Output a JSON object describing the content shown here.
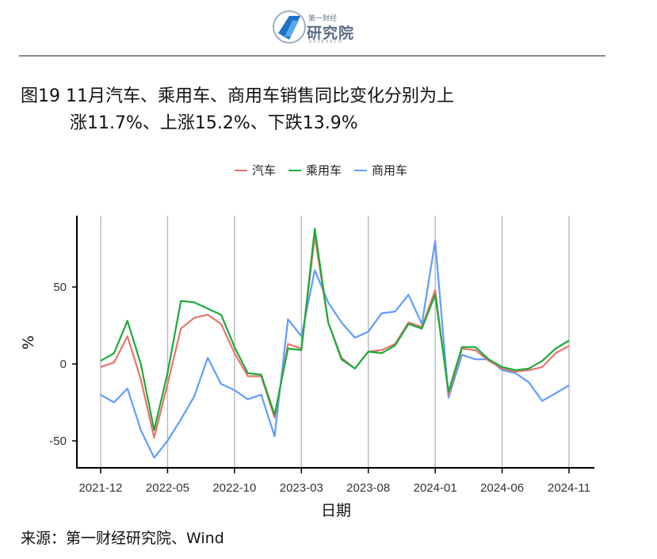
{
  "header": {
    "logo_top": "第一财经",
    "logo_main": "研究院",
    "logo_sub": "RESEARCH"
  },
  "title_line1": "图19 11月汽车、乘用车、商用车销售同比变化分别为上",
  "title_line2": "涨11.7%、上涨15.2%、下跌13.9%",
  "source": "来源：第一财经研究院、Wind",
  "chart_data": {
    "type": "line",
    "xlabel": "日期",
    "ylabel": "%",
    "ylim": [
      -68,
      95
    ],
    "yticks": [
      -50,
      0,
      50
    ],
    "xticks": [
      "2021-12",
      "2022-05",
      "2022-10",
      "2023-03",
      "2023-08",
      "2024-01",
      "2024-06",
      "2024-11"
    ],
    "xtick_index": [
      0,
      5,
      10,
      15,
      20,
      25,
      30,
      35
    ],
    "x": [
      "2021-12",
      "2022-01",
      "2022-02",
      "2022-03",
      "2022-04",
      "2022-05",
      "2022-06",
      "2022-07",
      "2022-08",
      "2022-09",
      "2022-10",
      "2022-11",
      "2022-12",
      "2023-01",
      "2023-02",
      "2023-03",
      "2023-04",
      "2023-05",
      "2023-06",
      "2023-07",
      "2023-08",
      "2023-09",
      "2023-10",
      "2023-11",
      "2023-12",
      "2024-01",
      "2024-02",
      "2024-03",
      "2024-04",
      "2024-05",
      "2024-06",
      "2024-07",
      "2024-08",
      "2024-09",
      "2024-10",
      "2024-11"
    ],
    "series": [
      {
        "name": "汽车",
        "color": "#e8746b",
        "values": [
          -2,
          1,
          18,
          -10,
          -48,
          -13,
          23,
          30,
          32,
          26,
          7,
          -8,
          -8,
          -35,
          13,
          10,
          83,
          27,
          4,
          -3,
          8,
          9,
          13,
          27,
          24,
          48,
          -20,
          10,
          9,
          2,
          -3,
          -5,
          -4,
          -2,
          7,
          11.7
        ]
      },
      {
        "name": "乘用车",
        "color": "#1aac3c",
        "values": [
          2,
          7,
          28,
          0,
          -43,
          -6,
          41,
          40,
          36,
          32,
          11,
          -6,
          -7,
          -33,
          10,
          9,
          88,
          27,
          3,
          -3,
          8,
          7,
          12,
          26,
          23,
          45,
          -18,
          11,
          11,
          3,
          -2,
          -4,
          -3,
          2,
          10,
          15.2
        ]
      },
      {
        "name": "商用车",
        "color": "#619cff",
        "values": [
          -20,
          -25,
          -16,
          -43,
          -61,
          -50,
          -36,
          -21,
          4,
          -13,
          -17,
          -23,
          -20,
          -47,
          29,
          18,
          61,
          40,
          27,
          17,
          21,
          33,
          34,
          45,
          26,
          80,
          -22,
          6,
          3,
          3,
          -4,
          -6,
          -12,
          -24,
          -19,
          -13.9
        ]
      }
    ]
  }
}
